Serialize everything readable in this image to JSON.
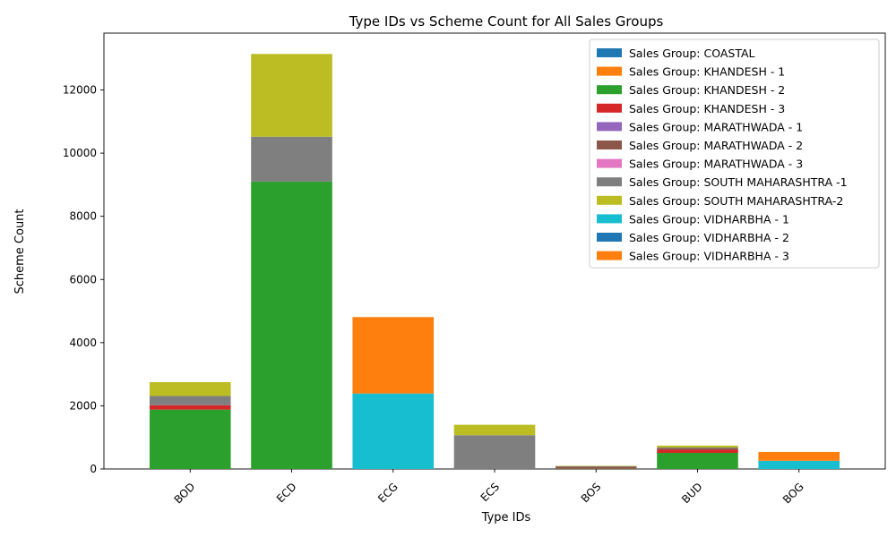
{
  "chart_data": {
    "type": "bar",
    "stacked": true,
    "title": "Type IDs vs Scheme Count for All Sales Groups",
    "xlabel": "Type IDs",
    "ylabel": "Scheme Count",
    "categories": [
      "BOD",
      "ECD",
      "ECG",
      "ECS",
      "BOS",
      "BUD",
      "BOG"
    ],
    "ylim": [
      0,
      13800
    ],
    "yticks": [
      0,
      2000,
      4000,
      6000,
      8000,
      10000,
      12000
    ],
    "legend_position": "top-right",
    "grid": false,
    "series": [
      {
        "name": "Sales Group: COASTAL",
        "color": "#1f77b4",
        "values": [
          0,
          0,
          0,
          0,
          0,
          0,
          0
        ]
      },
      {
        "name": "Sales Group: KHANDESH - 1",
        "color": "#ff7f0e",
        "values": [
          0,
          0,
          0,
          0,
          0,
          0,
          0
        ]
      },
      {
        "name": "Sales Group: KHANDESH - 2",
        "color": "#2ca02c",
        "values": [
          1880,
          9100,
          0,
          0,
          10,
          510,
          0
        ]
      },
      {
        "name": "Sales Group: KHANDESH - 3",
        "color": "#d62728",
        "values": [
          140,
          0,
          0,
          0,
          10,
          100,
          0
        ]
      },
      {
        "name": "Sales Group: MARATHWADA - 1",
        "color": "#9467bd",
        "values": [
          0,
          0,
          0,
          0,
          0,
          0,
          0
        ]
      },
      {
        "name": "Sales Group: MARATHWADA - 2",
        "color": "#8c564b",
        "values": [
          0,
          0,
          0,
          0,
          60,
          40,
          0
        ]
      },
      {
        "name": "Sales Group: MARATHWADA - 3",
        "color": "#e377c2",
        "values": [
          0,
          0,
          0,
          0,
          0,
          0,
          0
        ]
      },
      {
        "name": "Sales Group: SOUTH MAHARASHTRA -1",
        "color": "#7f7f7f",
        "values": [
          290,
          1420,
          0,
          1070,
          10,
          30,
          0
        ]
      },
      {
        "name": "Sales Group: SOUTH MAHARASHTRA-2",
        "color": "#bcbd22",
        "values": [
          440,
          2620,
          0,
          330,
          10,
          60,
          0
        ]
      },
      {
        "name": "Sales Group: VIDHARBHA - 1",
        "color": "#17becf",
        "values": [
          0,
          0,
          2390,
          0,
          0,
          0,
          260
        ]
      },
      {
        "name": "Sales Group: VIDHARBHA - 2",
        "color": "#1f77b4",
        "values": [
          0,
          0,
          0,
          0,
          0,
          0,
          0
        ]
      },
      {
        "name": "Sales Group: VIDHARBHA - 3",
        "color": "#ff7f0e",
        "values": [
          0,
          0,
          2420,
          0,
          0,
          0,
          280
        ]
      }
    ]
  }
}
